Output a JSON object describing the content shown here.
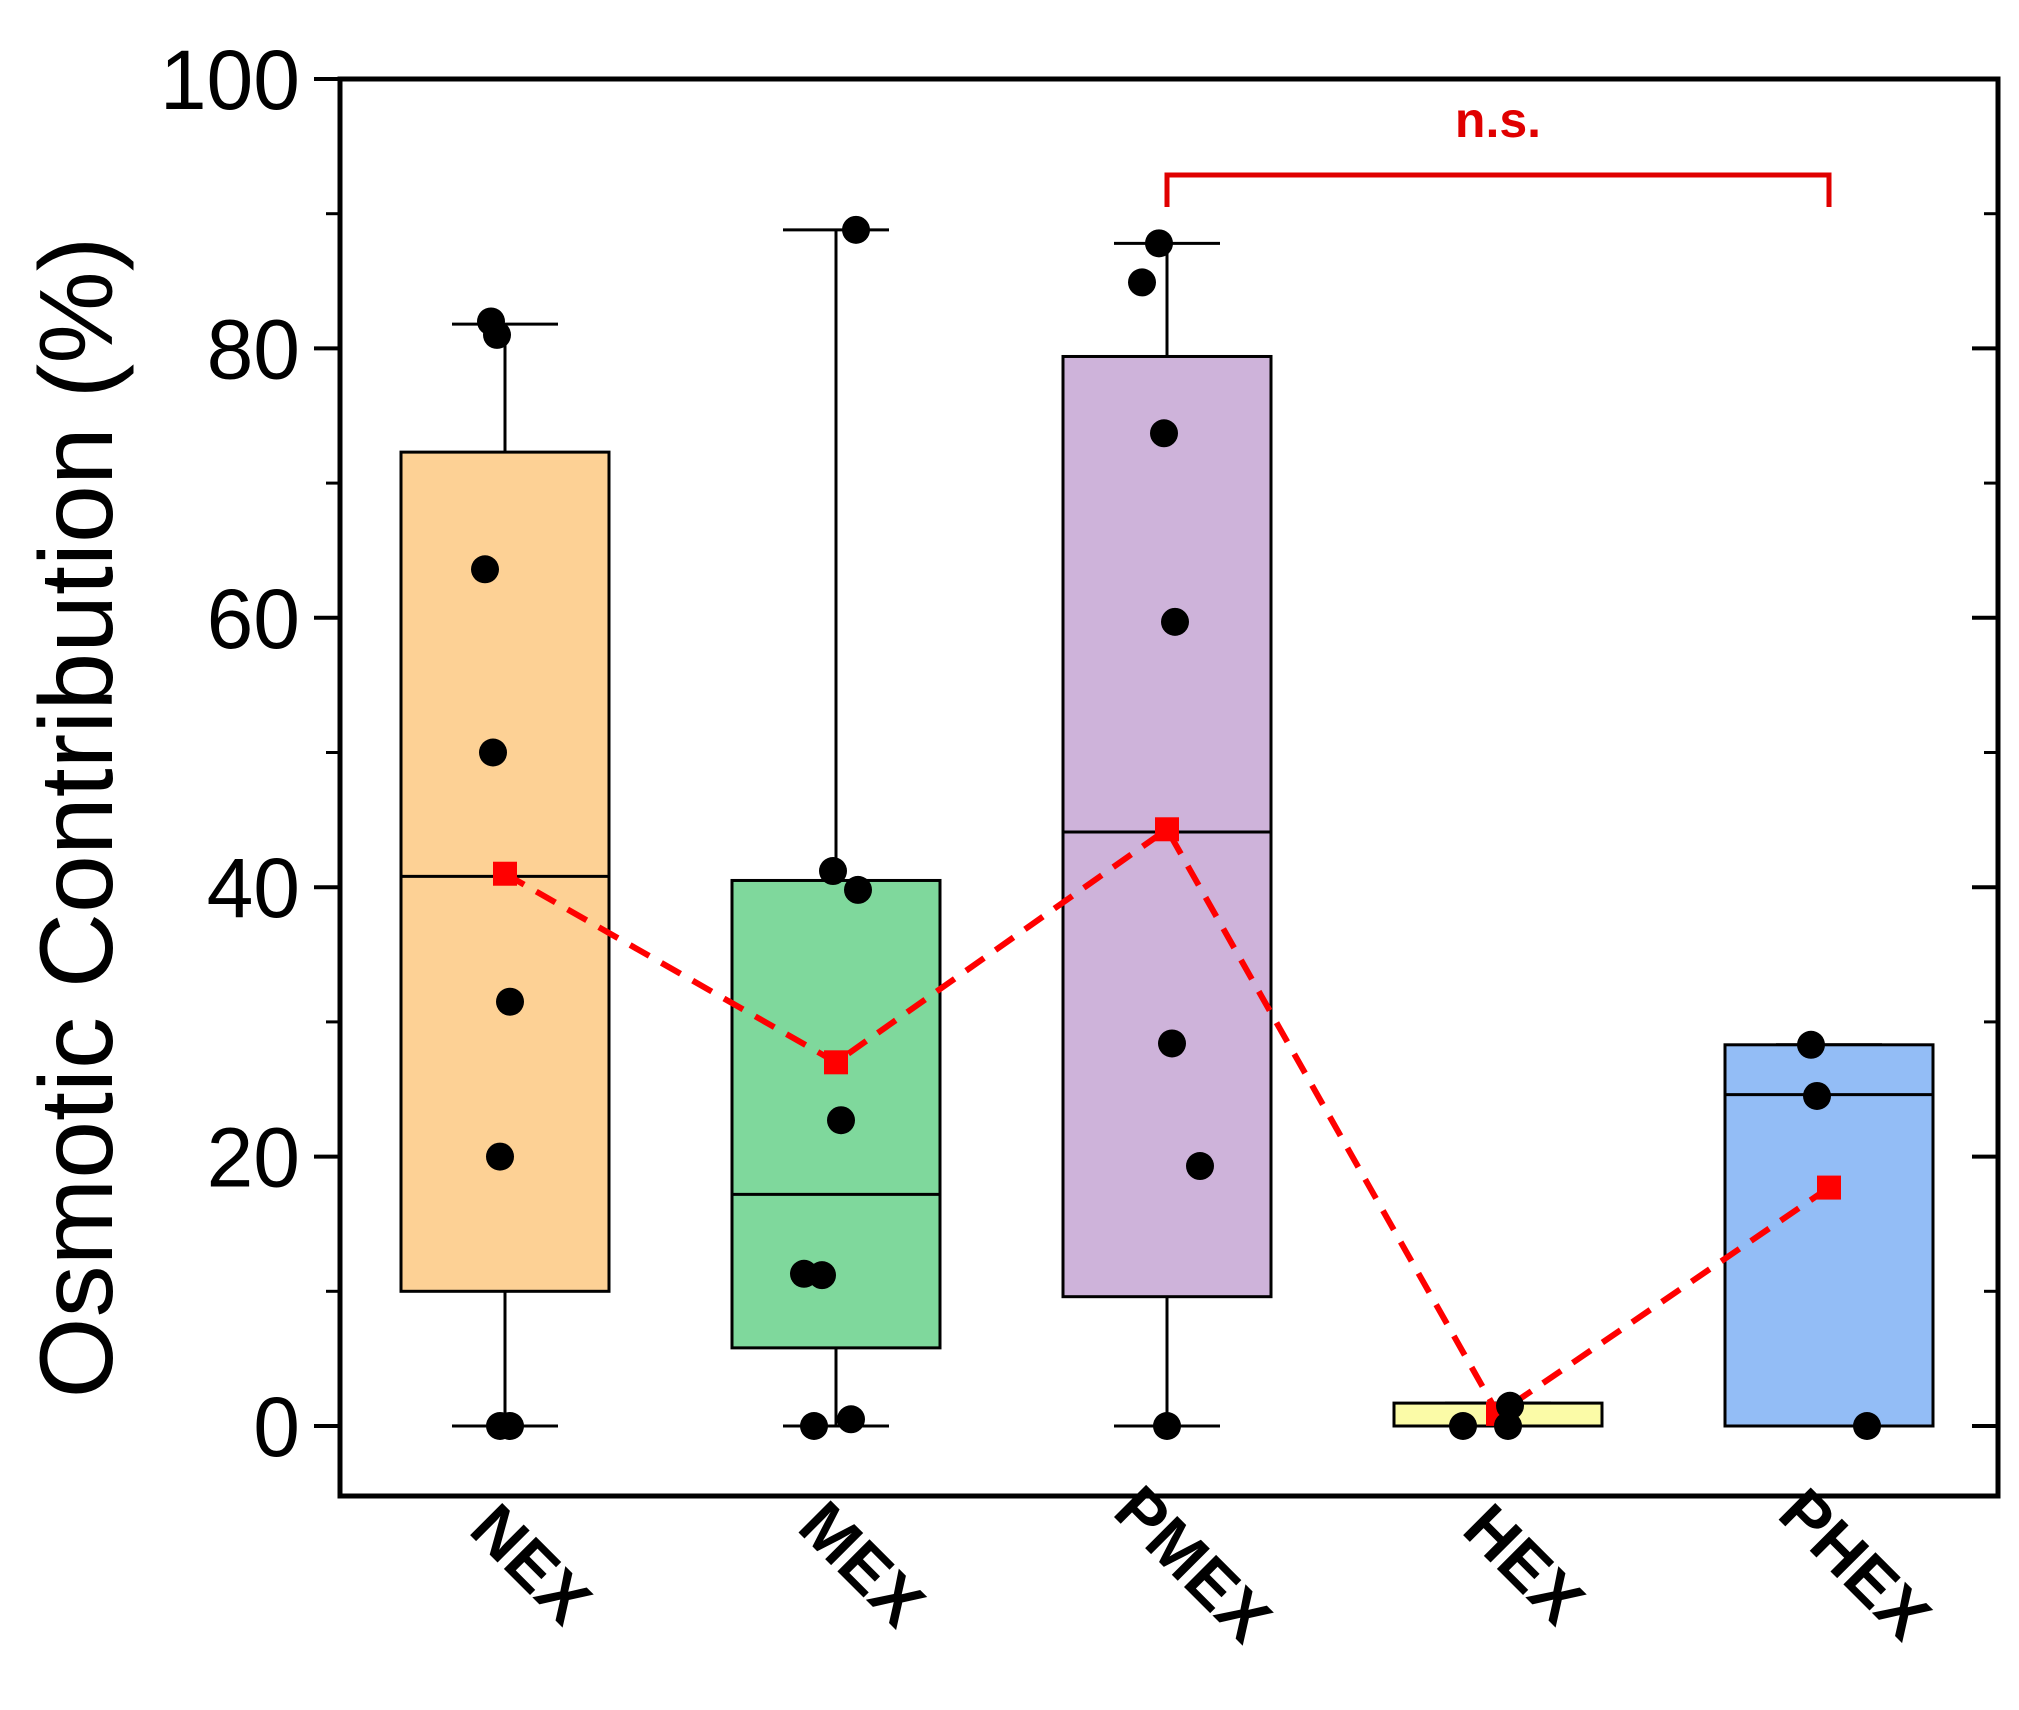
{
  "chart_data": {
    "type": "box",
    "ylabel": "Osmotic Contribution (%)",
    "ylim": [
      0,
      100
    ],
    "yticks": [
      0,
      20,
      40,
      60,
      80,
      100
    ],
    "grid": false,
    "categories": [
      "NEX",
      "MEX",
      "PMEX",
      "HEX",
      "PHEX"
    ],
    "boxes": [
      {
        "category": "NEX",
        "whisker_low": 0,
        "q1": 10,
        "median": 40.8,
        "q3": 72.3,
        "whisker_high": 81.8,
        "color": "#fdd195",
        "points": [
          0,
          0,
          20,
          31.5,
          50,
          63.6,
          81,
          82
        ]
      },
      {
        "category": "MEX",
        "whisker_low": 0,
        "q1": 5.8,
        "median": 17.2,
        "q3": 40.5,
        "whisker_high": 88.8,
        "color": "#7fd89c",
        "points": [
          0,
          0.5,
          11.3,
          11.2,
          22.7,
          39.8,
          41.2,
          88.8
        ]
      },
      {
        "category": "PMEX",
        "whisker_low": 0,
        "q1": 9.6,
        "median": 44.1,
        "q3": 79.4,
        "whisker_high": 87.8,
        "color": "#ceb3da",
        "points": [
          0,
          19.3,
          28.4,
          59.7,
          73.7,
          84.9,
          87.8
        ]
      },
      {
        "category": "HEX",
        "whisker_low": 0,
        "q1": 0,
        "median": 0,
        "q3": 1.7,
        "whisker_high": 1.7,
        "color": "#fbfba7",
        "points": [
          0,
          0,
          1.5
        ]
      },
      {
        "category": "PHEX",
        "whisker_low": 0,
        "q1": 0,
        "median": 24.6,
        "q3": 28.3,
        "whisker_high": 28.3,
        "color": "#93bdf6",
        "points": [
          0,
          24.5,
          28.3
        ]
      }
    ],
    "mean_series": {
      "values": [
        41,
        27,
        44.3,
        0.9,
        17.7
      ],
      "color": "#ff0000",
      "style": "dashed",
      "marker": "square"
    },
    "significance": {
      "label": "n.s.",
      "from": "PMEX",
      "to": "PHEX",
      "color": "#e00000"
    }
  }
}
